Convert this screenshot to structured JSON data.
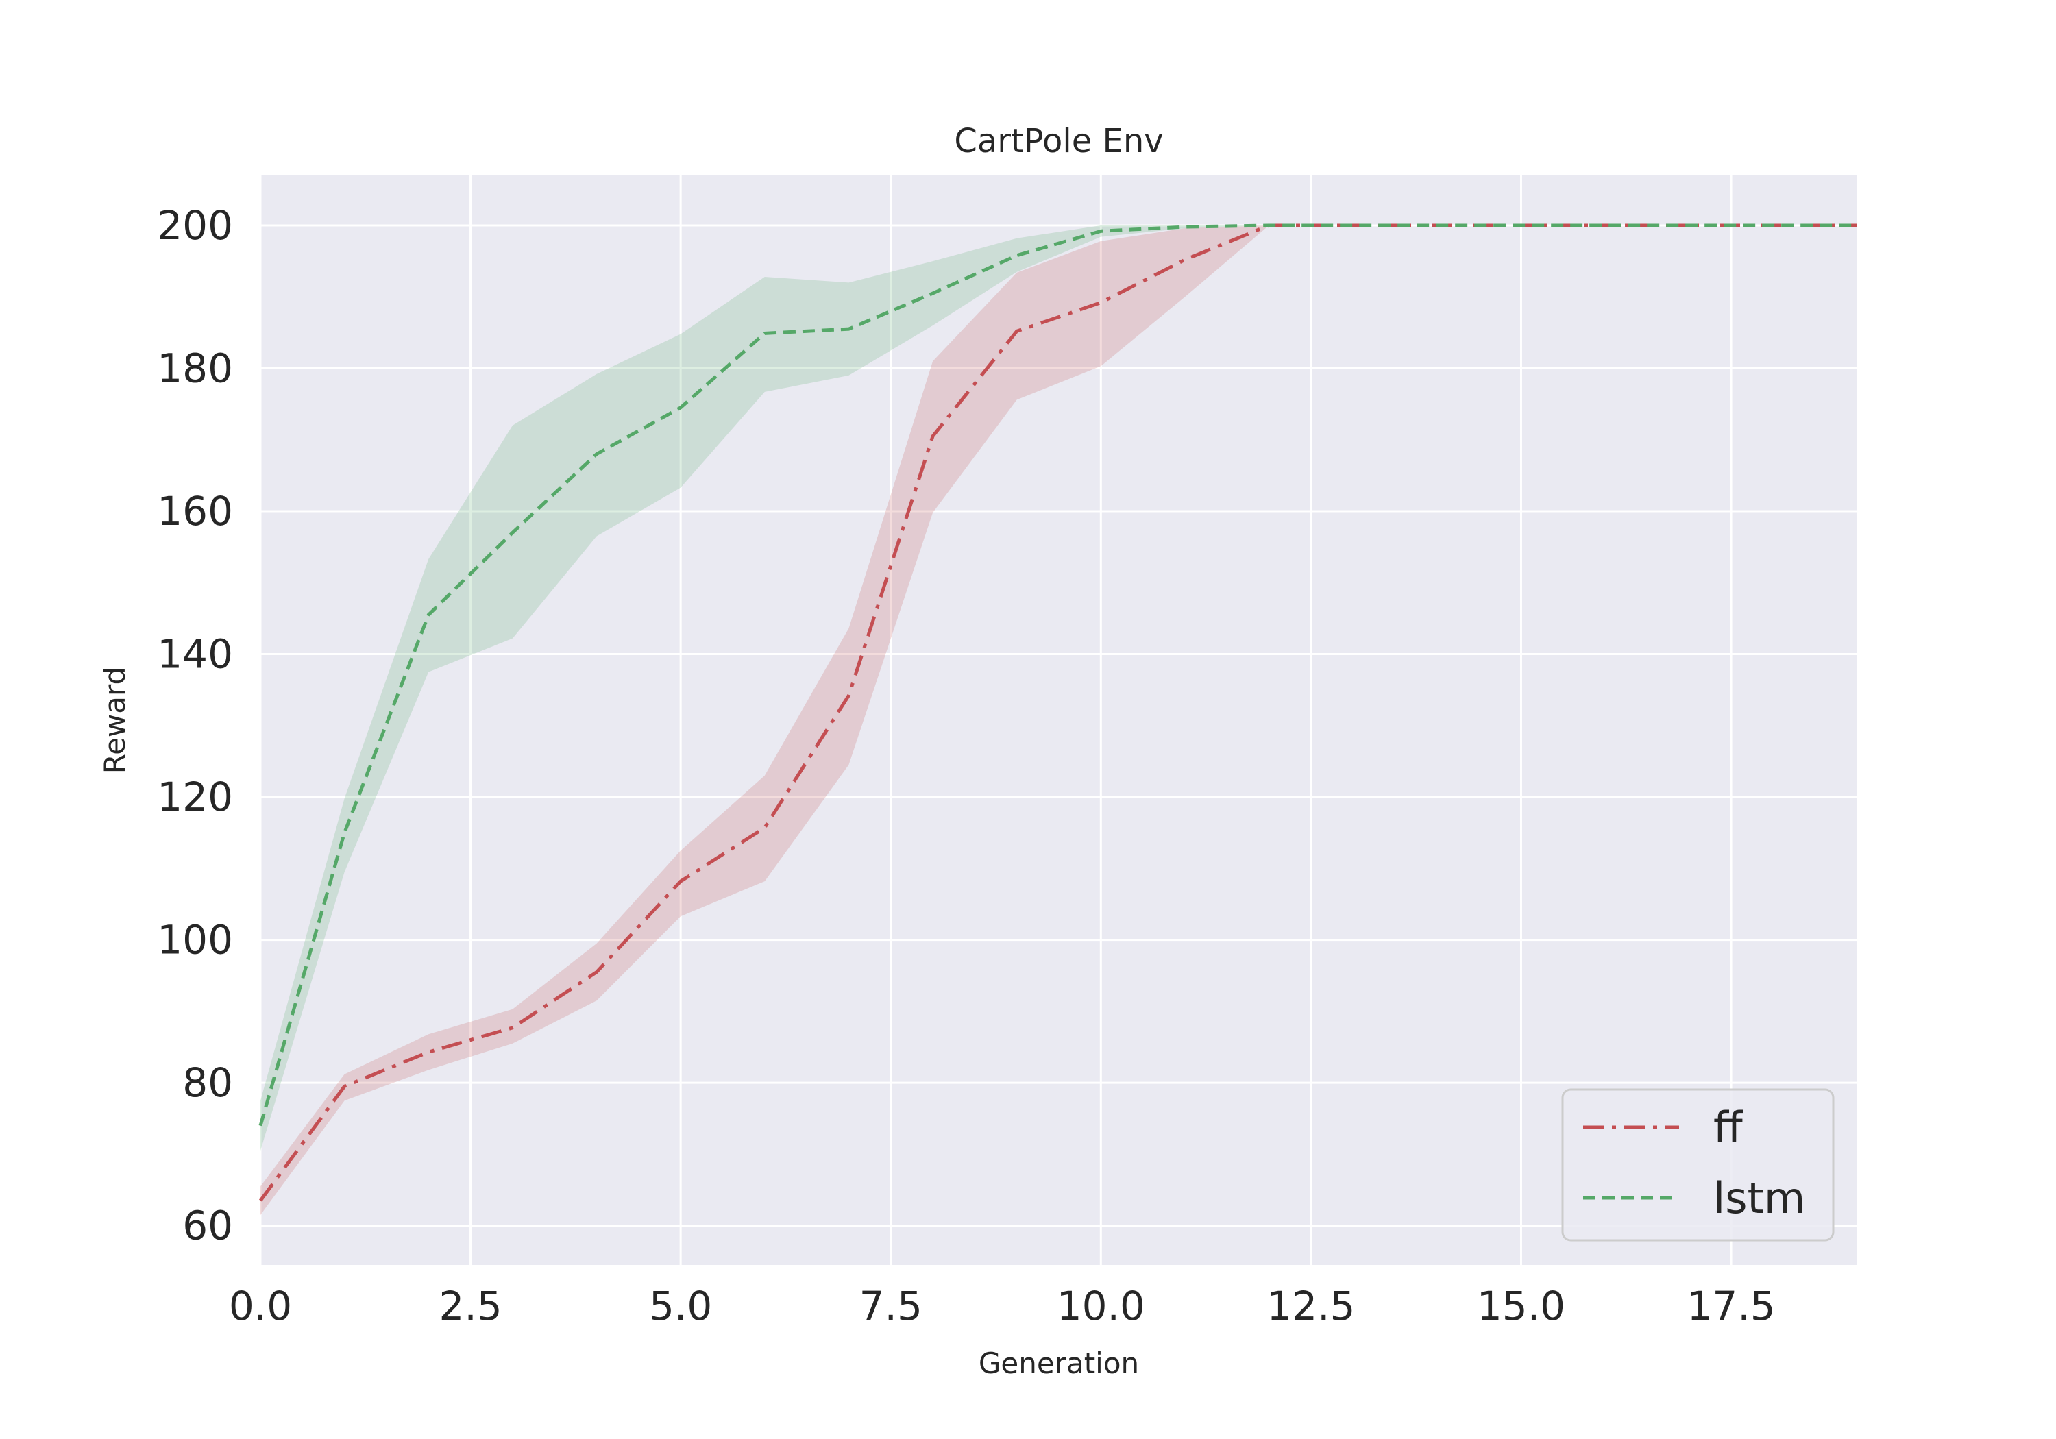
{
  "chart_data": {
    "type": "line",
    "title": "CartPole Env",
    "xlabel": "Generation",
    "ylabel": "Reward",
    "xlim": [
      0,
      19
    ],
    "ylim": [
      54.5,
      207
    ],
    "grid": true,
    "legend_position": "bottom-right",
    "x_ticks": [
      "0.0",
      "2.5",
      "5.0",
      "7.5",
      "10.0",
      "12.5",
      "15.0",
      "17.5"
    ],
    "y_ticks": [
      "60",
      "80",
      "100",
      "120",
      "140",
      "160",
      "180",
      "200"
    ],
    "x": [
      0,
      1,
      2,
      3,
      4,
      5,
      6,
      7,
      8,
      9,
      10,
      11,
      12,
      13,
      14,
      15,
      16,
      17,
      18,
      19
    ],
    "series": [
      {
        "name": "ff",
        "color": "#c44e52",
        "linestyle": "dashdot",
        "values": [
          63.5,
          79.5,
          84.3,
          87.7,
          95.5,
          108.2,
          115.7,
          134.2,
          170.5,
          185.2,
          189.2,
          195.2,
          200,
          200,
          200,
          200,
          200,
          200,
          200,
          200
        ],
        "lower": [
          61.5,
          77.5,
          81.8,
          85.5,
          91.5,
          103.3,
          108.2,
          124.5,
          159.8,
          175.6,
          180.3,
          190,
          200,
          200,
          200,
          200,
          200,
          200,
          200,
          200
        ],
        "upper": [
          65.5,
          81.2,
          86.8,
          90.3,
          99.5,
          112.5,
          123.0,
          143.6,
          181.0,
          193.4,
          197.8,
          199.6,
          200,
          200,
          200,
          200,
          200,
          200,
          200,
          200
        ]
      },
      {
        "name": "lstm",
        "color": "#55a868",
        "linestyle": "dashed",
        "values": [
          74.0,
          115.0,
          145.5,
          157.0,
          168.0,
          174.5,
          184.9,
          185.5,
          190.5,
          195.8,
          199.2,
          199.8,
          200,
          200,
          200,
          200,
          200,
          200,
          200,
          200
        ],
        "lower": [
          70.5,
          109.5,
          137.5,
          142.2,
          156.5,
          163.3,
          176.7,
          179.0,
          186.0,
          193.5,
          198.4,
          199.6,
          200,
          200,
          200,
          200,
          200,
          200,
          200,
          200
        ],
        "upper": [
          77.5,
          119.8,
          153.3,
          172.0,
          179.2,
          184.8,
          192.8,
          192.0,
          195.0,
          198.2,
          200.0,
          200.0,
          200,
          200,
          200,
          200,
          200,
          200,
          200,
          200
        ]
      }
    ]
  }
}
